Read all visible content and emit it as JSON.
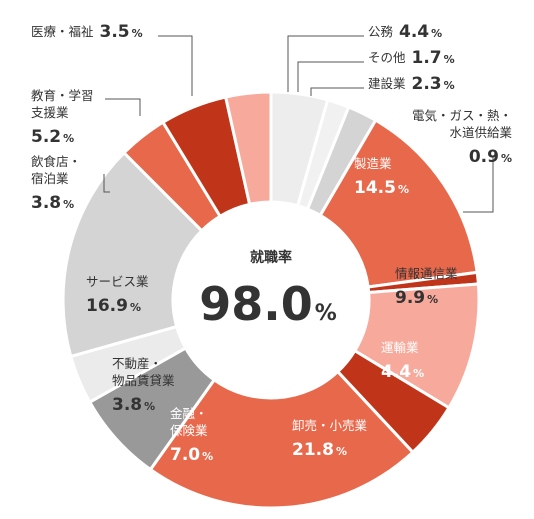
{
  "chart_data": {
    "type": "pie",
    "subtype": "donut",
    "center_label": "就職率",
    "center_value": "98.0",
    "center_unit": "%",
    "slices": [
      {
        "name": "公務",
        "value": 4.4,
        "color": "#ededed",
        "label_lines": [
          "公務"
        ],
        "value_text": "4.4"
      },
      {
        "name": "その他",
        "value": 1.7,
        "color": "#f1f1f1",
        "label_lines": [
          "その他"
        ],
        "value_text": "1.7"
      },
      {
        "name": "建設業",
        "value": 2.3,
        "color": "#d4d4d4",
        "label_lines": [
          "建設業"
        ],
        "value_text": "2.3"
      },
      {
        "name": "製造業",
        "value": 14.5,
        "color": "#e8684b",
        "label_lines": [
          "製造業"
        ],
        "value_text": "14.5"
      },
      {
        "name": "電気・ガス・熱・水道供給業",
        "value": 0.9,
        "color": "#c0351a",
        "label_lines": [
          "電気・ガス・熱・",
          "水道供給業"
        ],
        "value_text": "0.9"
      },
      {
        "name": "情報通信業",
        "value": 9.9,
        "color": "#f7aa9b",
        "label_lines": [
          "情報通信業"
        ],
        "value_text": "9.9"
      },
      {
        "name": "運輸業",
        "value": 4.4,
        "color": "#c0351a",
        "label_lines": [
          "運輸業"
        ],
        "value_text": "4.4"
      },
      {
        "name": "卸売・小売業",
        "value": 21.8,
        "color": "#e8684b",
        "label_lines": [
          "卸売・小売業"
        ],
        "value_text": "21.8"
      },
      {
        "name": "金融・保険業",
        "value": 7.0,
        "color": "#999999",
        "label_lines": [
          "金融・",
          "保険業"
        ],
        "value_text": "7.0"
      },
      {
        "name": "不動産・物品賃貸業",
        "value": 3.8,
        "color": "#ebebeb",
        "label_lines": [
          "不動産・",
          "物品賃貸業"
        ],
        "value_text": "3.8"
      },
      {
        "name": "サービス業",
        "value": 16.9,
        "color": "#d4d4d4",
        "label_lines": [
          "サービス業"
        ],
        "value_text": "16.9"
      },
      {
        "name": "飲食店・宿泊業",
        "value": 3.8,
        "color": "#e8684b",
        "label_lines": [
          "飲食店・",
          "宿泊業"
        ],
        "value_text": "3.8"
      },
      {
        "name": "教育・学習支援業",
        "value": 5.2,
        "color": "#c0351a",
        "label_lines": [
          "教育・学習",
          "支援業"
        ],
        "value_text": "5.2"
      },
      {
        "name": "医療・福祉",
        "value": 3.5,
        "color": "#f7aa9b",
        "label_lines": [
          "医療・福祉"
        ],
        "value_text": "3.5"
      }
    ],
    "unit": "%"
  }
}
